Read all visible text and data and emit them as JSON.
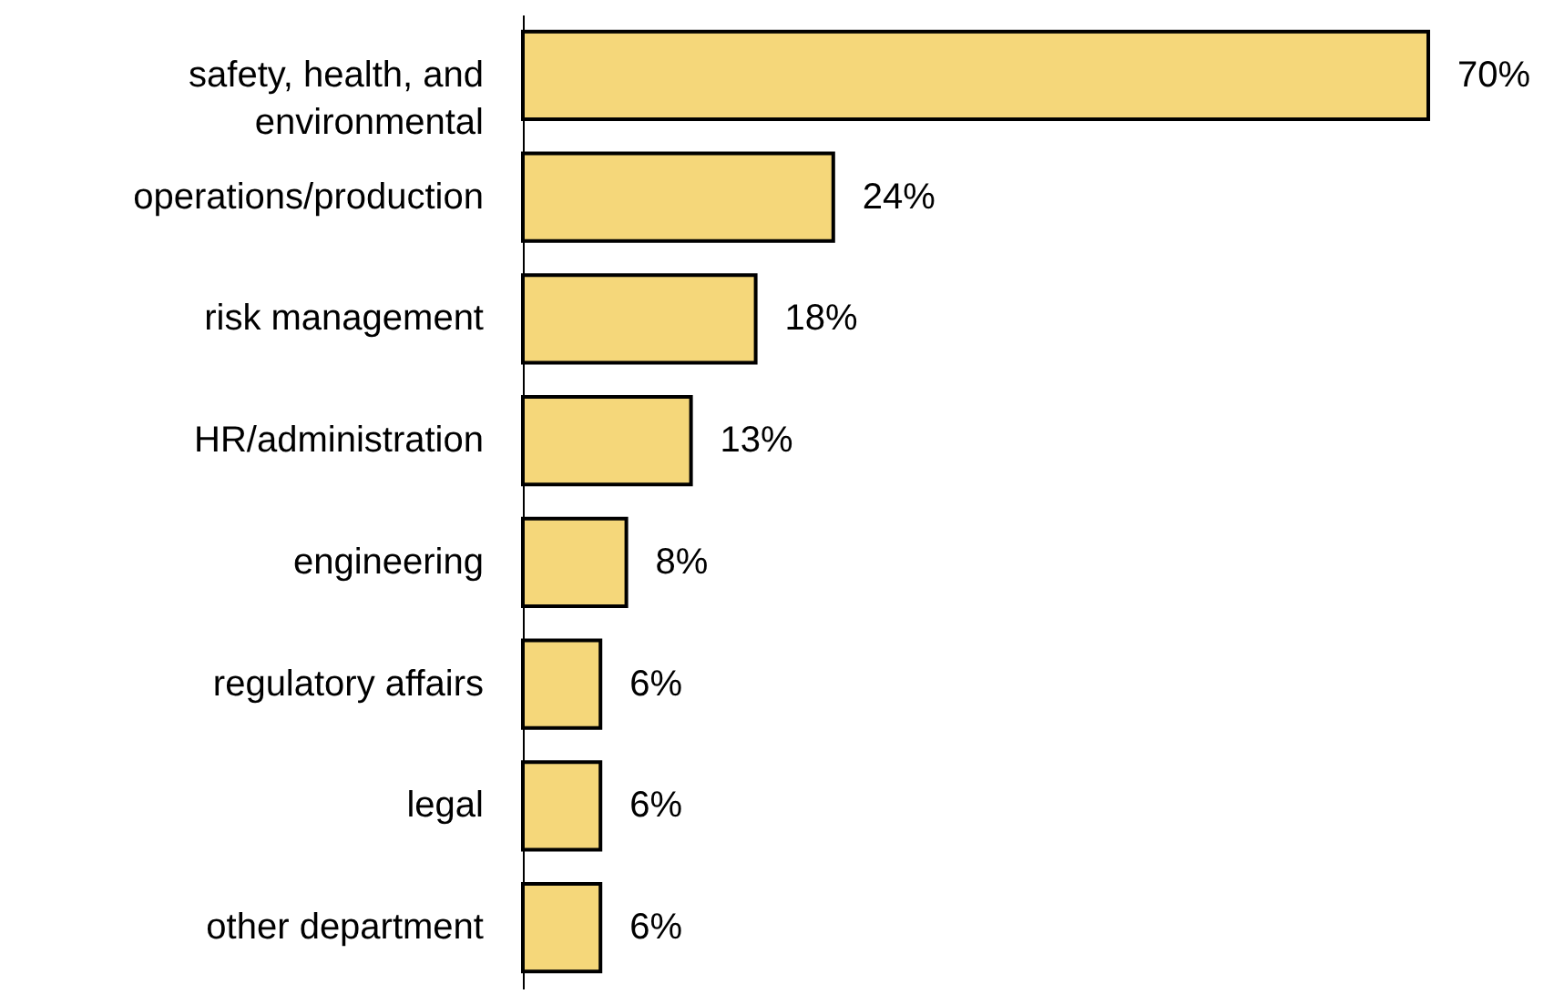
{
  "chart_data": {
    "type": "bar",
    "orientation": "horizontal",
    "categories": [
      "safety, health, and environmental",
      "operations/production",
      "risk management",
      "HR/administration",
      "engineering",
      "regulatory affairs",
      "legal",
      "other department"
    ],
    "values": [
      70,
      24,
      18,
      13,
      8,
      6,
      6,
      6
    ],
    "value_labels": [
      "70%",
      "24%",
      "18%",
      "13%",
      "8%",
      "6%",
      "6%",
      "6%"
    ],
    "color": "#f5d77a"
  }
}
